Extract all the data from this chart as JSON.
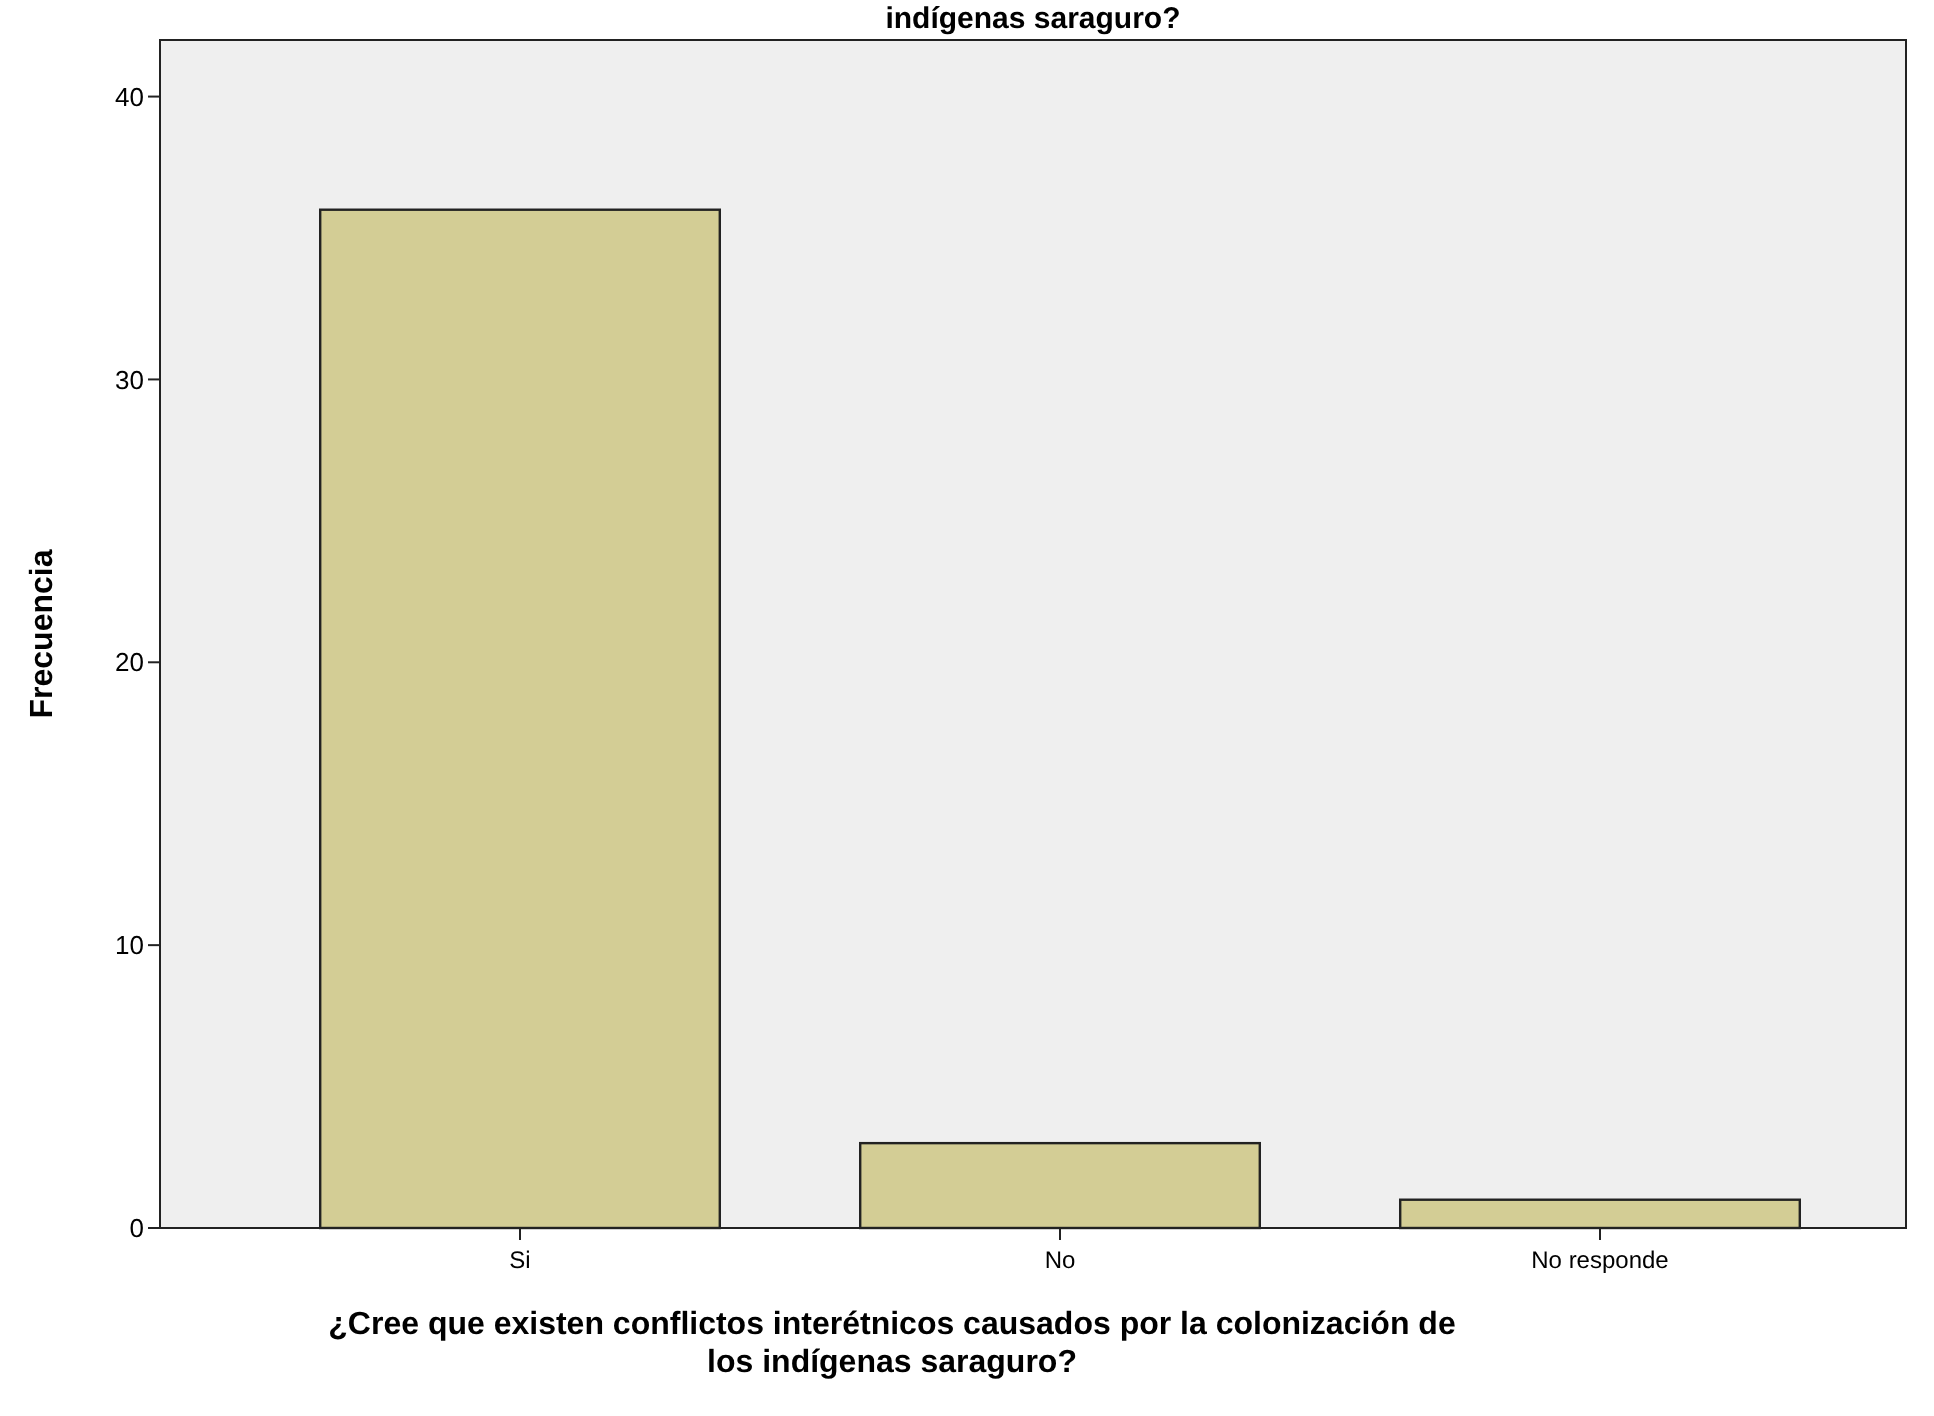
{
  "chart_data": {
    "type": "bar",
    "title": "indígenas saraguro?",
    "xlabel": "¿Cree que existen conflictos interétnicos causados por la colonización de\nlos indígenas saraguro?",
    "ylabel": "Frecuencia",
    "categories": [
      "Si",
      "No",
      "No responde"
    ],
    "values": [
      36,
      3,
      1
    ],
    "color": "#d3cd95",
    "ylim": [
      0,
      42
    ],
    "yticks": [
      0,
      10,
      20,
      30,
      40
    ],
    "grid": false
  }
}
